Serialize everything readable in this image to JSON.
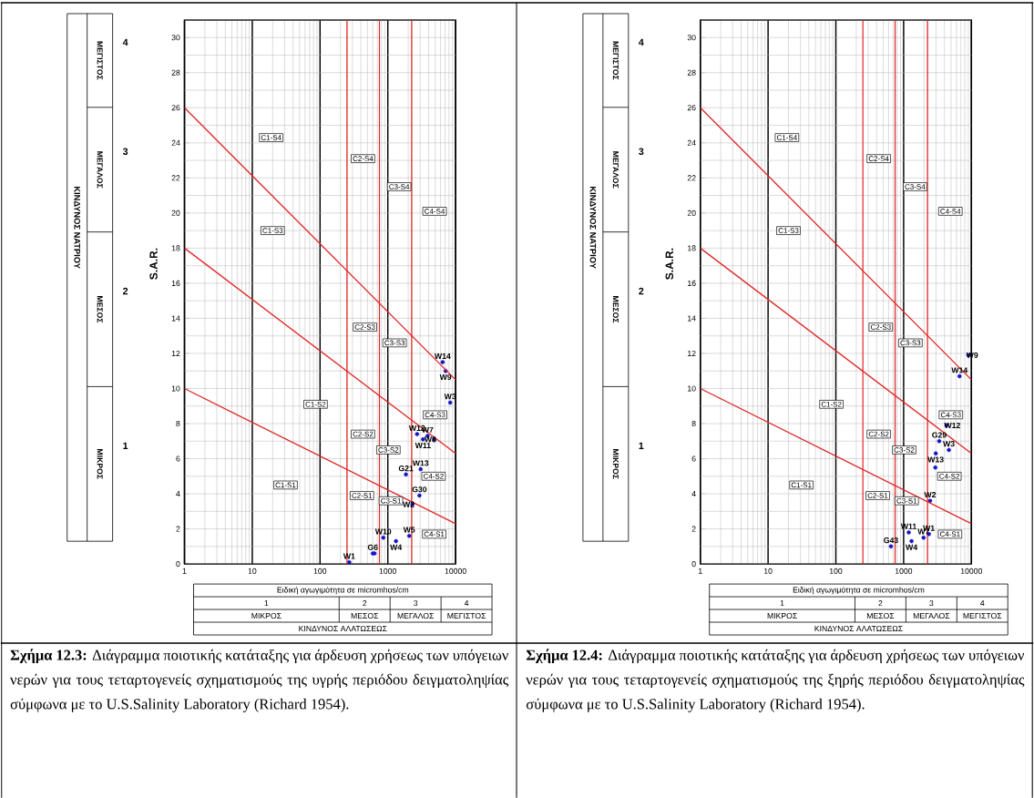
{
  "chart_data": [
    {
      "type": "scatter",
      "xlabel": "Ειδική αγωγιμότητα σε micromhos/cm",
      "ylabel": "S.A.R.",
      "log": "x",
      "grid": true,
      "marker": "circle",
      "xlim": [
        1,
        10000
      ],
      "ylim": [
        0,
        31
      ],
      "xticks": [
        1,
        10,
        100,
        1000,
        10000
      ],
      "yticks": [
        0,
        2,
        4,
        6,
        8,
        10,
        12,
        14,
        16,
        18,
        20,
        22,
        24,
        26,
        28,
        30
      ],
      "series": [
        {
          "type": "scatter",
          "color": "#1414c8",
          "x": [
            270,
            600,
            637,
            858,
            1320,
            2070,
            2310,
            2930,
            1850,
            3050,
            2700,
            3310,
            3860,
            4830,
            8320,
            6440,
            7130
          ],
          "values": [
            0.1,
            0.6,
            0.6,
            1.5,
            1.3,
            1.6,
            3.4,
            3.9,
            5.1,
            5.4,
            7.4,
            7.1,
            7.3,
            7.1,
            9.2,
            11.5,
            11.0
          ],
          "value_labels": [
            "W1",
            "G6",
            null,
            "W10",
            "W4",
            "W5",
            "W2",
            "G30",
            "G21",
            "W13",
            "W12",
            "W11",
            "W7",
            "W8",
            "W3",
            "W14",
            "W9"
          ]
        },
        {
          "type": "line",
          "color": "#e02828",
          "marker": "none",
          "x": [
            1,
            10000
          ],
          "values": [
            26,
            10.5
          ]
        },
        {
          "type": "line",
          "color": "#e02828",
          "marker": "none",
          "x": [
            1,
            10000
          ],
          "values": [
            18,
            6.3
          ]
        },
        {
          "type": "line",
          "color": "#e02828",
          "marker": "none",
          "x": [
            1,
            10000
          ],
          "values": [
            10,
            2.3
          ]
        }
      ],
      "ref_lines": [
        {
          "axis": "x",
          "value": 250,
          "color": "#e02828"
        },
        {
          "axis": "x",
          "value": 750,
          "color": "#e02828"
        },
        {
          "axis": "x",
          "value": 2250,
          "color": "#e02828"
        }
      ],
      "annotations": [
        "**Σχήμα 12.3:** Διάγραμμα ποιοτικής κατάταξης για άρδευση χρήσεως των υπόγειων νερών για τους τεταρτογενείς σχηματισμούς της υγρής περιόδου δειγματοληψίας σύμφωνα με το U.S.Salinity Laboratory (Richard 1954).",
        "ΚΙΝΔΥΝΟΣ ΝΑΤΡΙΟΥ",
        "ΜΙΚΡΟΣ",
        "ΜΕΣΟΣ",
        "ΜΕΓΑΛΟΣ",
        "ΜΕΓΙΣΤΟΣ",
        "1",
        "2",
        "3",
        "4",
        "1",
        "2",
        "3",
        "4",
        "ΜΙΚΡΟΣ",
        "ΜΕΣΟΣ",
        "ΜΕΓΑΛΟΣ",
        "ΜΕΓΙΣΤΟΣ",
        "ΚΙΝΔΥΝΟΣ ΑΛΑΤΩΣΕΩΣ",
        {
          "text": "C1-S1",
          "x": 31,
          "y": 4.5
        },
        {
          "text": "C1-S2",
          "x": 86,
          "y": 9.1
        },
        {
          "text": "C1-S3",
          "x": 20,
          "y": 19
        },
        {
          "text": "C1-S4",
          "x": 19,
          "y": 24.3
        },
        {
          "text": "C2-S1",
          "x": 415,
          "y": 3.9
        },
        {
          "text": "C2-S2",
          "x": 430,
          "y": 7.4
        },
        {
          "text": "C2-S3",
          "x": 460,
          "y": 13.5
        },
        {
          "text": "C2-S4",
          "x": 430,
          "y": 23.1
        },
        {
          "text": "C3-S1",
          "x": 1110,
          "y": 3.6
        },
        {
          "text": "C3-S2",
          "x": 1020,
          "y": 6.5
        },
        {
          "text": "C3-S3",
          "x": 1260,
          "y": 12.6
        },
        {
          "text": "C3-S4",
          "x": 1470,
          "y": 21.5
        },
        {
          "text": "C4-S1",
          "x": 4830,
          "y": 1.7
        },
        {
          "text": "C4-S2",
          "x": 4730,
          "y": 5.0
        },
        {
          "text": "C4-S3",
          "x": 4980,
          "y": 8.5
        },
        {
          "text": "C4-S4",
          "x": 4900,
          "y": 20.1
        }
      ]
    },
    {
      "type": "scatter",
      "xlabel": "Ειδική αγωγιμότητα σε micromhos/cm",
      "ylabel": "S.A.R.",
      "log": "x",
      "grid": true,
      "marker": "circle",
      "xlim": [
        1,
        10000
      ],
      "ylim": [
        0,
        31
      ],
      "xticks": [
        1,
        10,
        100,
        1000,
        10000
      ],
      "yticks": [
        0,
        2,
        4,
        6,
        8,
        10,
        12,
        14,
        16,
        18,
        20,
        22,
        24,
        26,
        28,
        30
      ],
      "series": [
        {
          "type": "scatter",
          "color": "#1414c8",
          "x": [
            650,
            1190,
            1310,
            1970,
            2360,
            2460,
            2940,
            2980,
            3350,
            4280,
            4650,
            6680,
            9040
          ],
          "values": [
            1.0,
            1.8,
            1.3,
            1.5,
            1.7,
            3.6,
            5.5,
            6.3,
            7.0,
            7.9,
            6.5,
            10.7,
            11.9
          ],
          "value_labels": [
            "G43",
            "W11",
            "W4",
            "W7",
            "W1",
            "W2",
            null,
            "W13",
            "G29",
            "W12",
            "W3",
            "W14",
            "W9"
          ]
        },
        {
          "type": "line",
          "color": "#e02828",
          "marker": "none",
          "x": [
            1,
            10000
          ],
          "values": [
            26,
            10.5
          ]
        },
        {
          "type": "line",
          "color": "#e02828",
          "marker": "none",
          "x": [
            1,
            10000
          ],
          "values": [
            18,
            6.3
          ]
        },
        {
          "type": "line",
          "color": "#e02828",
          "marker": "none",
          "x": [
            1,
            10000
          ],
          "values": [
            10,
            2.3
          ]
        }
      ],
      "ref_lines": [
        {
          "axis": "x",
          "value": 250,
          "color": "#e02828"
        },
        {
          "axis": "x",
          "value": 750,
          "color": "#e02828"
        },
        {
          "axis": "x",
          "value": 2250,
          "color": "#e02828"
        }
      ],
      "annotations": [
        "**Σχήμα 12.4:** Διάγραμμα ποιοτικής κατάταξης για άρδευση χρήσεως των υπόγειων νερών για τους τεταρτογενείς σχηματισμούς της ξηρής περιόδου δειγματοληψίας σύμφωνα με το U.S.Salinity Laboratory (Richard 1954).",
        "ΚΙΝΔΥΝΟΣ ΝΑΤΡΙΟΥ",
        "ΜΙΚΡΟΣ",
        "ΜΕΣΟΣ",
        "ΜΕΓΑΛΟΣ",
        "ΜΕΓΙΣΤΟΣ",
        "1",
        "2",
        "3",
        "4",
        "1",
        "2",
        "3",
        "4",
        "ΜΙΚΡΟΣ",
        "ΜΕΣΟΣ",
        "ΜΕΓΑΛΟΣ",
        "ΜΕΓΙΣΤΟΣ",
        "ΚΙΝΔΥΝΟΣ ΑΛΑΤΩΣΕΩΣ",
        {
          "text": "C1-S1",
          "x": 31,
          "y": 4.5
        },
        {
          "text": "C1-S2",
          "x": 86,
          "y": 9.1
        },
        {
          "text": "C1-S3",
          "x": 20,
          "y": 19
        },
        {
          "text": "C1-S4",
          "x": 19,
          "y": 24.3
        },
        {
          "text": "C2-S1",
          "x": 415,
          "y": 3.9
        },
        {
          "text": "C2-S2",
          "x": 430,
          "y": 7.4
        },
        {
          "text": "C2-S3",
          "x": 460,
          "y": 13.5
        },
        {
          "text": "C2-S4",
          "x": 430,
          "y": 23.1
        },
        {
          "text": "C3-S1",
          "x": 1110,
          "y": 3.6
        },
        {
          "text": "C3-S2",
          "x": 1020,
          "y": 6.5
        },
        {
          "text": "C3-S3",
          "x": 1260,
          "y": 12.6
        },
        {
          "text": "C3-S4",
          "x": 1470,
          "y": 21.5
        },
        {
          "text": "C4-S1",
          "x": 4830,
          "y": 1.7
        },
        {
          "text": "C4-S2",
          "x": 4730,
          "y": 5.0
        },
        {
          "text": "C4-S3",
          "x": 4980,
          "y": 8.5
        },
        {
          "text": "C4-S4",
          "x": 4900,
          "y": 20.1
        }
      ]
    }
  ]
}
